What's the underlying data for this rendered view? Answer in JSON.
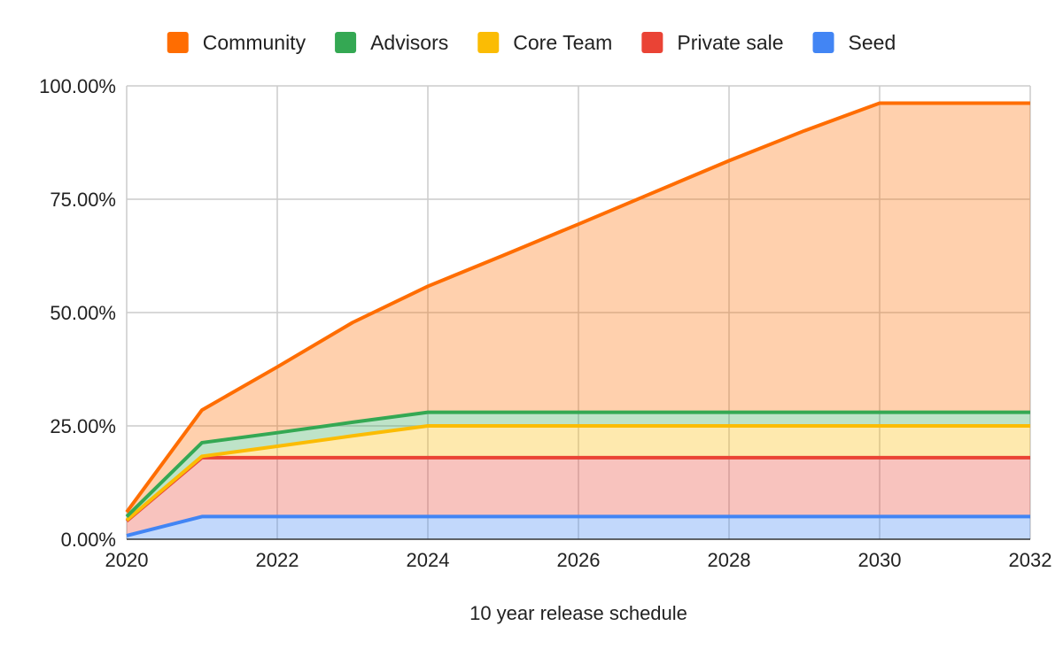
{
  "chart_data": {
    "type": "area",
    "stacked": true,
    "xlabel": "10 year release schedule",
    "ylabel": "",
    "x": [
      2020,
      2021,
      2022,
      2023,
      2024,
      2025,
      2026,
      2027,
      2028,
      2029,
      2030,
      2031,
      2032
    ],
    "xlim": [
      2020,
      2032
    ],
    "ylim": [
      0,
      100
    ],
    "x_ticks": [
      "2020",
      "2022",
      "2024",
      "2026",
      "2028",
      "2030",
      "2032"
    ],
    "y_ticks": [
      "0.00%",
      "25.00%",
      "50.00%",
      "75.00%",
      "100.00%"
    ],
    "y_tick_values": [
      0,
      25,
      50,
      75,
      100
    ],
    "grid": true,
    "legend_position": "top",
    "series": [
      {
        "name": "Seed",
        "color": "#4285f4",
        "values": [
          0.8,
          5,
          5,
          5,
          5,
          5,
          5,
          5,
          5,
          5,
          5,
          5,
          5
        ]
      },
      {
        "name": "Private sale",
        "color": "#ea4335",
        "values": [
          3.2,
          13,
          13,
          13,
          13,
          13,
          13,
          13,
          13,
          13,
          13,
          13,
          13
        ]
      },
      {
        "name": "Core Team",
        "color": "#fbbc04",
        "values": [
          0.2,
          0.3,
          2.5,
          4.8,
          7,
          7,
          7,
          7,
          7,
          7,
          7,
          7,
          7
        ]
      },
      {
        "name": "Advisors",
        "color": "#34a853",
        "values": [
          0.8,
          3,
          3,
          3,
          3,
          3,
          3,
          3,
          3,
          3,
          3,
          3,
          3
        ]
      },
      {
        "name": "Community",
        "color": "#ff6d01",
        "values": [
          1,
          7.2,
          14.5,
          22,
          27.8,
          34.6,
          41.5,
          48.5,
          55.5,
          62.1,
          68.2,
          68.2,
          68.2
        ]
      }
    ],
    "legend_order": [
      "Community",
      "Advisors",
      "Core Team",
      "Private sale",
      "Seed"
    ]
  }
}
